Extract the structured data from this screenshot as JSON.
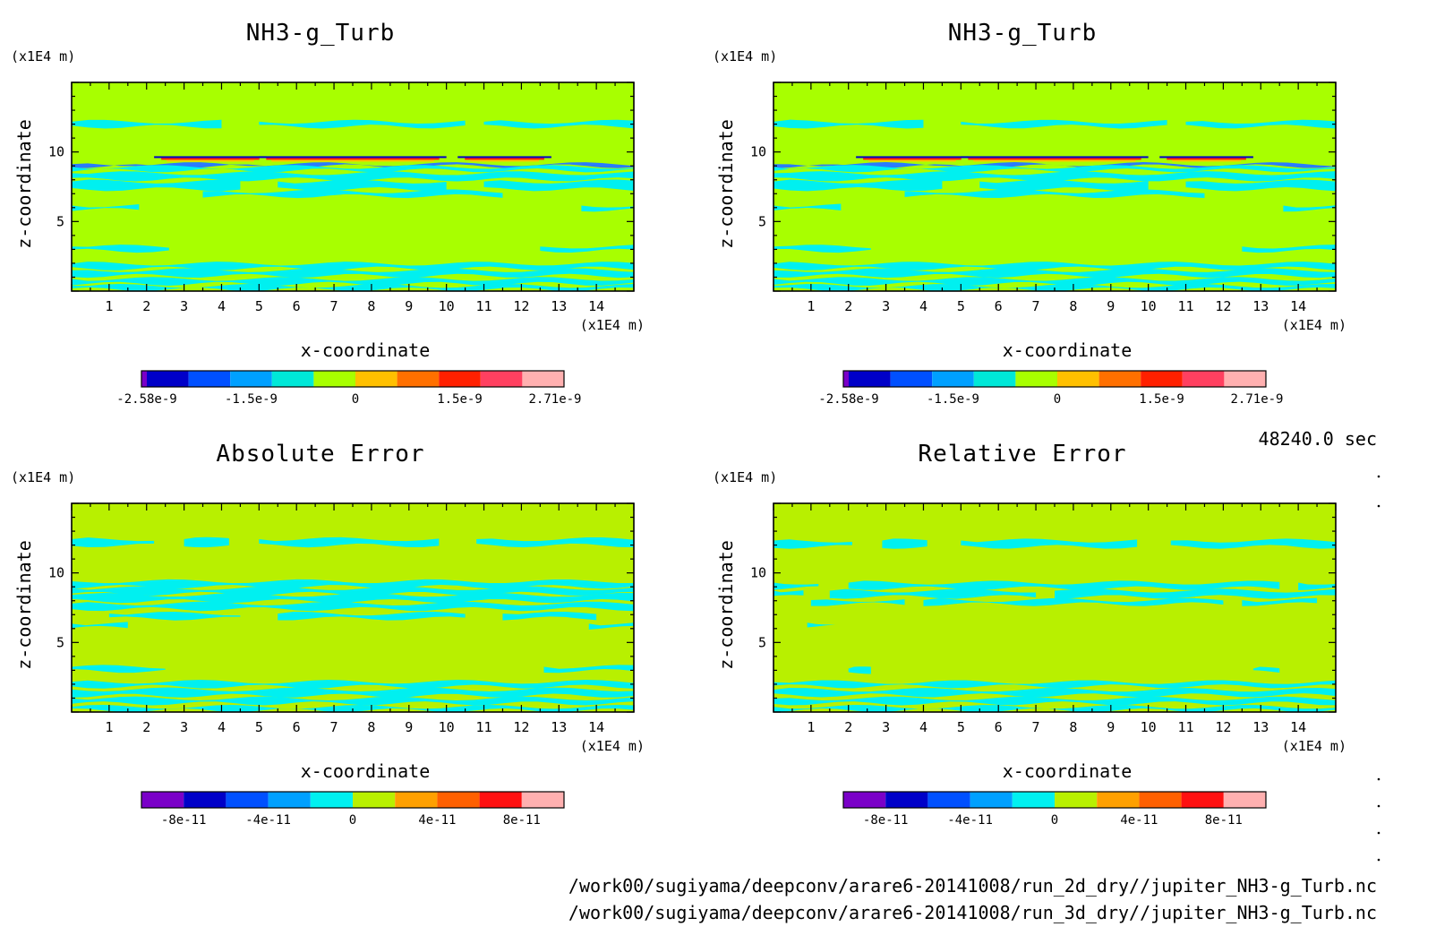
{
  "meta": {
    "time_label": "48240.0 sec",
    "file_paths": [
      "/work00/sugiyama/deepconv/arare6-20141008/run_2d_dry//jupiter_NH3-g_Turb.nc",
      "/work00/sugiyama/deepconv/arare6-20141008/run_3d_dry//jupiter_NH3-g_Turb.nc"
    ]
  },
  "chart_data": [
    {
      "type": "heatmap",
      "title": "NH3-g_Turb",
      "xlabel": "x-coordinate",
      "ylabel": "z-coordinate",
      "x_unit": "(x1E4 m)",
      "y_unit": "(x1E4 m)",
      "xlim": [
        0,
        15
      ],
      "ylim": [
        0,
        15
      ],
      "x_ticks": [
        "1",
        "2",
        "3",
        "4",
        "5",
        "6",
        "7",
        "8",
        "9",
        "10",
        "11",
        "12",
        "13",
        "14"
      ],
      "y_ticks": [
        "5",
        "10"
      ],
      "background_color": "#a8ff00",
      "anomaly_color": "#00f0f0",
      "bands": [
        {
          "z": 12.0,
          "thickness": 0.35,
          "x_ranges": [
            [
              0,
              4.0
            ],
            [
              5.0,
              10.5
            ],
            [
              11.0,
              15
            ]
          ]
        },
        {
          "z": 9.05,
          "thickness": 0.15,
          "x_ranges": [
            [
              0,
              15
            ]
          ],
          "color": "#2a7bff"
        },
        {
          "z": 8.8,
          "thickness": 0.25,
          "x_ranges": [
            [
              0,
              15
            ]
          ]
        },
        {
          "z": 8.25,
          "thickness": 0.45,
          "x_ranges": [
            [
              0,
              15
            ]
          ]
        },
        {
          "z": 7.6,
          "thickness": 0.55,
          "x_ranges": [
            [
              0,
              4.5
            ],
            [
              5.5,
              10.0
            ],
            [
              11.0,
              15
            ]
          ]
        },
        {
          "z": 7.0,
          "thickness": 0.35,
          "x_ranges": [
            [
              3.5,
              11.5
            ]
          ]
        },
        {
          "z": 6.0,
          "thickness": 0.3,
          "x_ranges": [
            [
              0,
              1.8
            ],
            [
              13.6,
              15
            ]
          ]
        },
        {
          "z": 3.05,
          "thickness": 0.3,
          "x_ranges": [
            [
              0,
              2.6
            ],
            [
              12.5,
              15
            ]
          ]
        },
        {
          "z": 1.8,
          "thickness": 0.35,
          "x_ranges": [
            [
              0,
              15
            ]
          ]
        },
        {
          "z": 1.3,
          "thickness": 0.4,
          "x_ranges": [
            [
              0,
              15
            ]
          ]
        },
        {
          "z": 0.7,
          "thickness": 0.35,
          "x_ranges": [
            [
              0,
              15
            ]
          ]
        },
        {
          "z": 0.25,
          "thickness": 0.25,
          "x_ranges": [
            [
              0,
              15
            ]
          ]
        }
      ],
      "jet_features": [
        {
          "z": 9.5,
          "x_ranges": [
            [
              2.2,
              5.2
            ],
            [
              5.0,
              10.0
            ],
            [
              10.3,
              12.8
            ]
          ]
        }
      ],
      "colorbar": {
        "min": -2.58e-09,
        "max": 2.71e-09,
        "labels": [
          "-2.58e-9",
          "-1.5e-9",
          "0",
          "1.5e-9",
          "2.71e-9"
        ],
        "colors": [
          "#7a00c8",
          "#0000c8",
          "#0050ff",
          "#00a0ff",
          "#00e8d8",
          "#a8ff00",
          "#ffc000",
          "#ff7000",
          "#ff2000",
          "#ff4060",
          "#ffb0b0"
        ]
      }
    },
    {
      "type": "heatmap",
      "title": "NH3-g_Turb",
      "xlabel": "x-coordinate",
      "ylabel": "z-coordinate",
      "x_unit": "(x1E4 m)",
      "y_unit": "(x1E4 m)",
      "xlim": [
        0,
        15
      ],
      "ylim": [
        0,
        15
      ],
      "x_ticks": [
        "1",
        "2",
        "3",
        "4",
        "5",
        "6",
        "7",
        "8",
        "9",
        "10",
        "11",
        "12",
        "13",
        "14"
      ],
      "y_ticks": [
        "5",
        "10"
      ],
      "background_color": "#a8ff00",
      "anomaly_color": "#00f0f0",
      "bands": [
        {
          "z": 12.0,
          "thickness": 0.35,
          "x_ranges": [
            [
              0,
              4.0
            ],
            [
              5.0,
              10.5
            ],
            [
              11.0,
              15
            ]
          ]
        },
        {
          "z": 9.05,
          "thickness": 0.15,
          "x_ranges": [
            [
              0,
              15
            ]
          ],
          "color": "#2a7bff"
        },
        {
          "z": 8.8,
          "thickness": 0.25,
          "x_ranges": [
            [
              0,
              15
            ]
          ]
        },
        {
          "z": 8.25,
          "thickness": 0.45,
          "x_ranges": [
            [
              0,
              15
            ]
          ]
        },
        {
          "z": 7.6,
          "thickness": 0.55,
          "x_ranges": [
            [
              0,
              4.5
            ],
            [
              5.5,
              10.0
            ],
            [
              11.0,
              15
            ]
          ]
        },
        {
          "z": 7.0,
          "thickness": 0.35,
          "x_ranges": [
            [
              3.5,
              11.5
            ]
          ]
        },
        {
          "z": 6.0,
          "thickness": 0.3,
          "x_ranges": [
            [
              0,
              1.8
            ],
            [
              13.6,
              15
            ]
          ]
        },
        {
          "z": 3.05,
          "thickness": 0.3,
          "x_ranges": [
            [
              0,
              2.6
            ],
            [
              12.5,
              15
            ]
          ]
        },
        {
          "z": 1.8,
          "thickness": 0.35,
          "x_ranges": [
            [
              0,
              15
            ]
          ]
        },
        {
          "z": 1.3,
          "thickness": 0.4,
          "x_ranges": [
            [
              0,
              15
            ]
          ]
        },
        {
          "z": 0.7,
          "thickness": 0.35,
          "x_ranges": [
            [
              0,
              15
            ]
          ]
        },
        {
          "z": 0.25,
          "thickness": 0.25,
          "x_ranges": [
            [
              0,
              15
            ]
          ]
        }
      ],
      "jet_features": [
        {
          "z": 9.5,
          "x_ranges": [
            [
              2.2,
              5.2
            ],
            [
              5.0,
              10.0
            ],
            [
              10.3,
              12.8
            ]
          ]
        }
      ],
      "colorbar": {
        "min": -2.58e-09,
        "max": 2.71e-09,
        "labels": [
          "-2.58e-9",
          "-1.5e-9",
          "0",
          "1.5e-9",
          "2.71e-9"
        ],
        "colors": [
          "#7a00c8",
          "#0000c8",
          "#0050ff",
          "#00a0ff",
          "#00e8d8",
          "#a8ff00",
          "#ffc000",
          "#ff7000",
          "#ff2000",
          "#ff4060",
          "#ffb0b0"
        ]
      }
    },
    {
      "type": "heatmap",
      "title": "Absolute Error",
      "xlabel": "x-coordinate",
      "ylabel": "z-coordinate",
      "x_unit": "(x1E4 m)",
      "y_unit": "(x1E4 m)",
      "xlim": [
        0,
        15
      ],
      "ylim": [
        0,
        15
      ],
      "x_ticks": [
        "1",
        "2",
        "3",
        "4",
        "5",
        "6",
        "7",
        "8",
        "9",
        "10",
        "11",
        "12",
        "13",
        "14"
      ],
      "y_ticks": [
        "5",
        "10"
      ],
      "background_color": "#b8f000",
      "anomaly_color": "#00f0f0",
      "bands": [
        {
          "z": 12.2,
          "thickness": 0.45,
          "x_ranges": [
            [
              0,
              2.2
            ],
            [
              3.0,
              4.2
            ],
            [
              5.0,
              9.8
            ],
            [
              10.8,
              15
            ]
          ]
        },
        {
          "z": 9.2,
          "thickness": 0.4,
          "x_ranges": [
            [
              0,
              15
            ]
          ]
        },
        {
          "z": 8.7,
          "thickness": 0.4,
          "x_ranges": [
            [
              0,
              15
            ]
          ]
        },
        {
          "z": 8.2,
          "thickness": 0.45,
          "x_ranges": [
            [
              0,
              15
            ]
          ]
        },
        {
          "z": 7.6,
          "thickness": 0.4,
          "x_ranges": [
            [
              0,
              15
            ]
          ]
        },
        {
          "z": 6.9,
          "thickness": 0.35,
          "x_ranges": [
            [
              1.0,
              4.5
            ],
            [
              5.5,
              10.5
            ],
            [
              11.5,
              14.0
            ]
          ]
        },
        {
          "z": 6.2,
          "thickness": 0.3,
          "x_ranges": [
            [
              0,
              1.5
            ],
            [
              13.8,
              15
            ]
          ]
        },
        {
          "z": 3.1,
          "thickness": 0.3,
          "x_ranges": [
            [
              0,
              2.5
            ],
            [
              12.6,
              15
            ]
          ]
        },
        {
          "z": 2.0,
          "thickness": 0.35,
          "x_ranges": [
            [
              0,
              15
            ]
          ]
        },
        {
          "z": 1.4,
          "thickness": 0.45,
          "x_ranges": [
            [
              0,
              15
            ]
          ]
        },
        {
          "z": 0.8,
          "thickness": 0.35,
          "x_ranges": [
            [
              0,
              15
            ]
          ]
        },
        {
          "z": 0.25,
          "thickness": 0.25,
          "x_ranges": [
            [
              0,
              15
            ]
          ]
        }
      ],
      "colorbar": {
        "labels": [
          "-8e-11",
          "-4e-11",
          "0",
          "4e-11",
          "8e-11"
        ],
        "colors": [
          "#7a00c8",
          "#0000c8",
          "#0050ff",
          "#00a0ff",
          "#00f0f0",
          "#b8f000",
          "#ffa000",
          "#ff6000",
          "#ff1010",
          "#ffb0b0"
        ]
      }
    },
    {
      "type": "heatmap",
      "title": "Relative Error",
      "xlabel": "x-coordinate",
      "ylabel": "z-coordinate",
      "x_unit": "(x1E4 m)",
      "y_unit": "(x1E4 m)",
      "xlim": [
        0,
        15
      ],
      "ylim": [
        0,
        15
      ],
      "x_ticks": [
        "1",
        "2",
        "3",
        "4",
        "5",
        "6",
        "7",
        "8",
        "9",
        "10",
        "11",
        "12",
        "13",
        "14"
      ],
      "y_ticks": [
        "5",
        "10"
      ],
      "background_color": "#b8f000",
      "anomaly_color": "#00f0f0",
      "bands": [
        {
          "z": 12.1,
          "thickness": 0.45,
          "x_ranges": [
            [
              0,
              2.1
            ],
            [
              2.9,
              4.1
            ],
            [
              5.0,
              9.7
            ],
            [
              10.6,
              15
            ]
          ]
        },
        {
          "z": 9.1,
          "thickness": 0.4,
          "x_ranges": [
            [
              0,
              1.2
            ],
            [
              2.0,
              13.5
            ],
            [
              14.0,
              15
            ]
          ]
        },
        {
          "z": 8.5,
          "thickness": 0.45,
          "x_ranges": [
            [
              0,
              0.8
            ],
            [
              1.5,
              7.0
            ],
            [
              7.5,
              15
            ]
          ]
        },
        {
          "z": 7.9,
          "thickness": 0.3,
          "x_ranges": [
            [
              1.0,
              3.5
            ],
            [
              4.0,
              12.0
            ],
            [
              12.5,
              14.5
            ]
          ]
        },
        {
          "z": 6.3,
          "thickness": 0.25,
          "x_ranges": [
            [
              0.9,
              1.9
            ]
          ]
        },
        {
          "z": 3.0,
          "thickness": 0.25,
          "x_ranges": [
            [
              2.0,
              2.6
            ],
            [
              12.8,
              13.5
            ]
          ]
        },
        {
          "z": 2.0,
          "thickness": 0.3,
          "x_ranges": [
            [
              0,
              15
            ]
          ]
        },
        {
          "z": 1.4,
          "thickness": 0.4,
          "x_ranges": [
            [
              0,
              15
            ]
          ]
        },
        {
          "z": 0.8,
          "thickness": 0.35,
          "x_ranges": [
            [
              0,
              15
            ]
          ]
        },
        {
          "z": 0.25,
          "thickness": 0.25,
          "x_ranges": [
            [
              0,
              15
            ]
          ]
        }
      ],
      "colorbar": {
        "labels": [
          "-8e-11",
          "-4e-11",
          "0",
          "4e-11",
          "8e-11"
        ],
        "colors": [
          "#7a00c8",
          "#0000c8",
          "#0050ff",
          "#00a0ff",
          "#00f0f0",
          "#b8f000",
          "#ffa000",
          "#ff6000",
          "#ff1010",
          "#ffb0b0"
        ]
      }
    }
  ]
}
